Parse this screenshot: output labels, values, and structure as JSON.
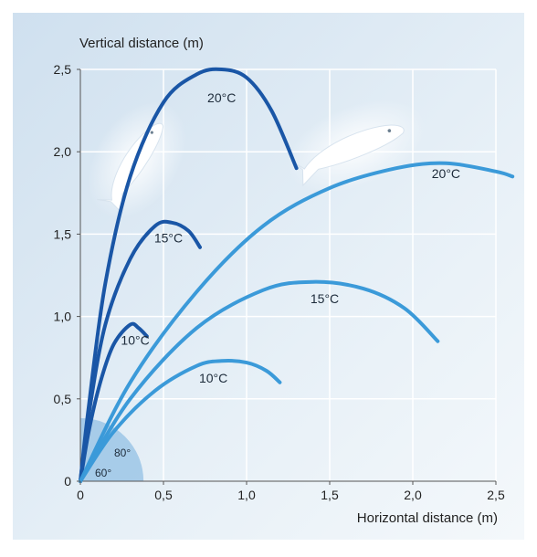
{
  "chart_data": {
    "type": "line",
    "xlabel": "Horizontal distance (m)",
    "ylabel": "Vertical distance (m)",
    "xlim": [
      0,
      2.5
    ],
    "ylim": [
      0,
      2.5
    ],
    "x_ticks": [
      {
        "value": 0,
        "label": "0"
      },
      {
        "value": 0.5,
        "label": "0,5"
      },
      {
        "value": 1.0,
        "label": "1,0"
      },
      {
        "value": 1.5,
        "label": "1,5"
      },
      {
        "value": 2.0,
        "label": "2,0"
      },
      {
        "value": 2.5,
        "label": "2,5"
      }
    ],
    "y_ticks": [
      {
        "value": 0,
        "label": "0"
      },
      {
        "value": 0.5,
        "label": "0,5"
      },
      {
        "value": 1.0,
        "label": "1,0"
      },
      {
        "value": 1.5,
        "label": "1,5"
      },
      {
        "value": 2.0,
        "label": "2,0"
      },
      {
        "value": 2.5,
        "label": "2,5"
      }
    ],
    "grid": true,
    "angle_labels": [
      "80°",
      "60°"
    ],
    "series": [
      {
        "name": "20°C",
        "launch_angle": "80°",
        "color": "#1a56a6",
        "points": [
          [
            0,
            0
          ],
          [
            0.05,
            0.45
          ],
          [
            0.15,
            1.2
          ],
          [
            0.3,
            1.85
          ],
          [
            0.5,
            2.3
          ],
          [
            0.7,
            2.47
          ],
          [
            0.85,
            2.5
          ],
          [
            1.0,
            2.45
          ],
          [
            1.15,
            2.25
          ],
          [
            1.3,
            1.9
          ]
        ]
      },
      {
        "name": "15°C",
        "launch_angle": "80°",
        "color": "#1a56a6",
        "points": [
          [
            0,
            0
          ],
          [
            0.05,
            0.4
          ],
          [
            0.15,
            0.95
          ],
          [
            0.3,
            1.35
          ],
          [
            0.45,
            1.55
          ],
          [
            0.55,
            1.57
          ],
          [
            0.65,
            1.52
          ],
          [
            0.72,
            1.42
          ]
        ]
      },
      {
        "name": "10°C",
        "launch_angle": "80°",
        "color": "#1a56a6",
        "points": [
          [
            0,
            0
          ],
          [
            0.05,
            0.3
          ],
          [
            0.12,
            0.6
          ],
          [
            0.2,
            0.83
          ],
          [
            0.3,
            0.95
          ],
          [
            0.35,
            0.93
          ],
          [
            0.4,
            0.88
          ]
        ]
      },
      {
        "name": "20°C",
        "launch_angle": "60°",
        "color": "#3b9ad9",
        "points": [
          [
            0,
            0
          ],
          [
            0.3,
            0.6
          ],
          [
            0.7,
            1.15
          ],
          [
            1.1,
            1.55
          ],
          [
            1.5,
            1.78
          ],
          [
            1.9,
            1.9
          ],
          [
            2.2,
            1.93
          ],
          [
            2.5,
            1.88
          ],
          [
            2.6,
            1.85
          ]
        ]
      },
      {
        "name": "15°C",
        "launch_angle": "60°",
        "color": "#3b9ad9",
        "points": [
          [
            0,
            0
          ],
          [
            0.3,
            0.5
          ],
          [
            0.7,
            0.93
          ],
          [
            1.1,
            1.16
          ],
          [
            1.4,
            1.21
          ],
          [
            1.7,
            1.17
          ],
          [
            1.95,
            1.05
          ],
          [
            2.15,
            0.85
          ]
        ]
      },
      {
        "name": "10°C",
        "launch_angle": "60°",
        "color": "#3b9ad9",
        "points": [
          [
            0,
            0
          ],
          [
            0.2,
            0.3
          ],
          [
            0.45,
            0.55
          ],
          [
            0.7,
            0.7
          ],
          [
            0.85,
            0.73
          ],
          [
            1.0,
            0.72
          ],
          [
            1.12,
            0.67
          ],
          [
            1.2,
            0.6
          ]
        ]
      }
    ],
    "annotations": [
      {
        "text": "20°C",
        "x": 0.85,
        "y": 2.3
      },
      {
        "text": "15°C",
        "x": 0.53,
        "y": 1.45
      },
      {
        "text": "10°C",
        "x": 0.33,
        "y": 0.83
      },
      {
        "text": "20°C",
        "x": 2.2,
        "y": 1.84
      },
      {
        "text": "15°C",
        "x": 1.47,
        "y": 1.08
      },
      {
        "text": "10°C",
        "x": 0.8,
        "y": 0.6
      }
    ]
  }
}
